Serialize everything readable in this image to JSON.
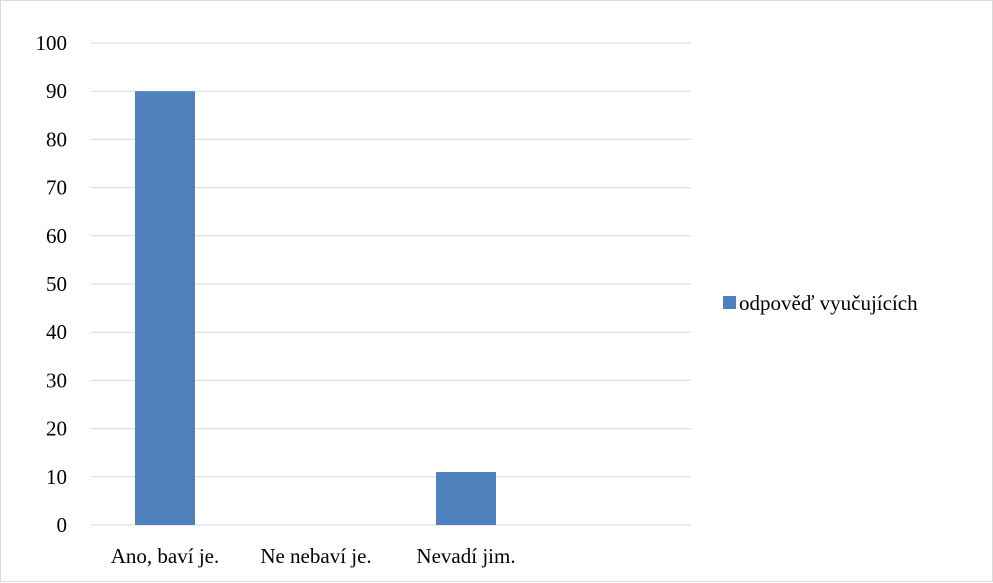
{
  "chart_data": {
    "type": "bar",
    "categories": [
      "Ano, baví je.",
      "Ne nebaví je.",
      "Nevadí jim."
    ],
    "series": [
      {
        "name": "odpověď vyučujících",
        "values": [
          90,
          0,
          11
        ],
        "color": "#4f81bd"
      }
    ],
    "ylim": [
      0,
      100
    ],
    "yticks": [
      0,
      10,
      20,
      30,
      40,
      50,
      60,
      70,
      80,
      90,
      100
    ],
    "grid": true,
    "gridline_color": "#d9d9d9",
    "legend_position": "right",
    "title": "",
    "xlabel": "",
    "ylabel": ""
  }
}
